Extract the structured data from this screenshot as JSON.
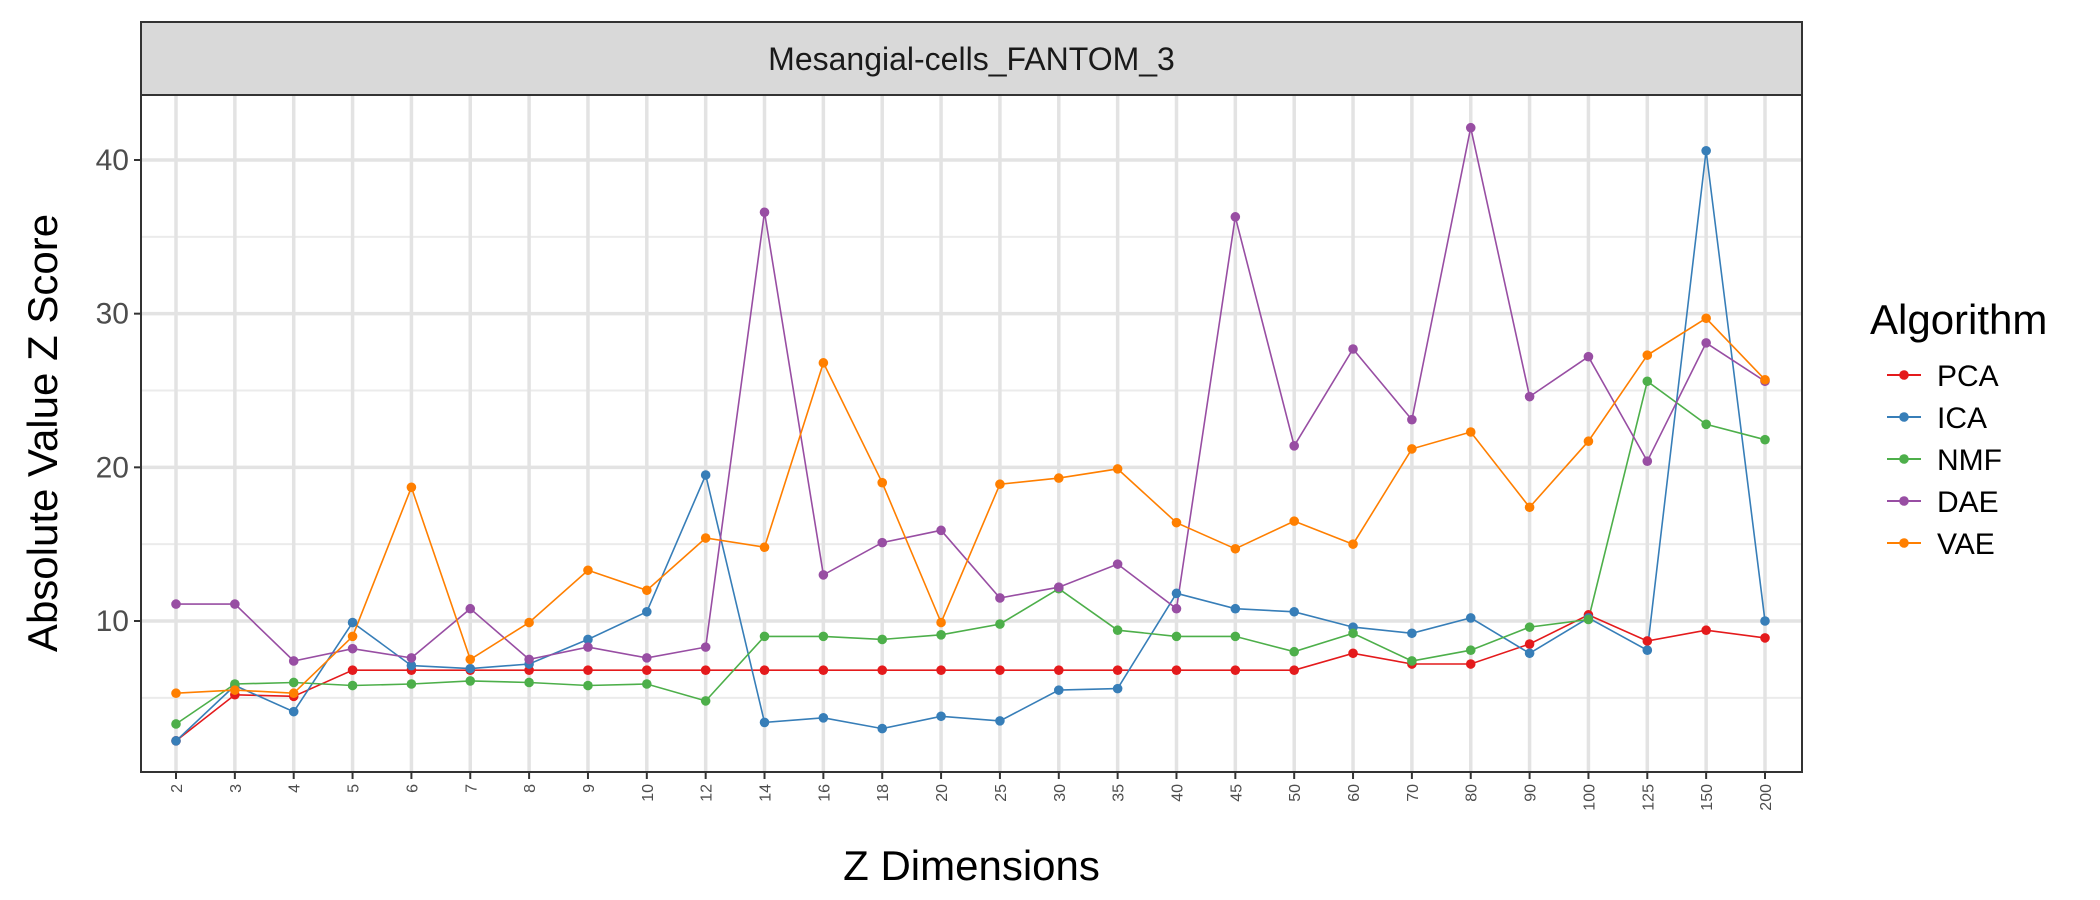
{
  "chart_data": {
    "type": "line",
    "facet_title": "Mesangial-cells_FANTOM_3",
    "xlabel": "Z Dimensions",
    "ylabel": "Absolute Value Z Score",
    "categories": [
      "2",
      "3",
      "4",
      "5",
      "6",
      "7",
      "8",
      "9",
      "10",
      "12",
      "14",
      "16",
      "18",
      "20",
      "25",
      "30",
      "35",
      "40",
      "45",
      "50",
      "60",
      "70",
      "80",
      "90",
      "100",
      "125",
      "150",
      "200"
    ],
    "ylim": [
      0,
      45
    ],
    "yticks": [
      10,
      20,
      30,
      40
    ],
    "grid": true,
    "legend": {
      "title": "Algorithm",
      "position": "right"
    },
    "series": [
      {
        "name": "PCA",
        "color": "#e41a1c",
        "values": [
          2.2,
          5.2,
          5.1,
          6.8,
          6.8,
          6.8,
          6.8,
          6.8,
          6.8,
          6.8,
          6.8,
          6.8,
          6.8,
          6.8,
          6.8,
          6.8,
          6.8,
          6.8,
          6.8,
          6.8,
          7.9,
          7.2,
          7.2,
          8.5,
          10.4,
          8.7,
          9.4,
          8.9
        ]
      },
      {
        "name": "ICA",
        "color": "#377eb8",
        "values": [
          2.2,
          5.8,
          4.1,
          9.9,
          7.1,
          6.9,
          7.2,
          8.8,
          10.6,
          19.5,
          3.4,
          3.7,
          3.0,
          3.8,
          3.5,
          5.5,
          5.6,
          11.8,
          10.8,
          10.6,
          9.6,
          9.2,
          10.2,
          7.9,
          10.2,
          8.1,
          40.6,
          10.0
        ]
      },
      {
        "name": "NMF",
        "color": "#4daf4a",
        "values": [
          3.3,
          5.9,
          6.0,
          5.8,
          5.9,
          6.1,
          6.0,
          5.8,
          5.9,
          4.8,
          9.0,
          9.0,
          8.8,
          9.1,
          9.8,
          12.1,
          9.4,
          9.0,
          9.0,
          8.0,
          9.2,
          7.4,
          8.1,
          9.6,
          10.1,
          25.6,
          22.8,
          21.8
        ]
      },
      {
        "name": "DAE",
        "color": "#984ea3",
        "values": [
          11.1,
          11.1,
          7.4,
          8.2,
          7.6,
          10.8,
          7.5,
          8.3,
          7.6,
          8.3,
          36.6,
          13.0,
          15.1,
          15.9,
          11.5,
          12.2,
          13.7,
          10.8,
          36.3,
          21.4,
          27.7,
          23.1,
          42.1,
          24.6,
          27.2,
          20.4,
          28.1,
          25.6
        ]
      },
      {
        "name": "VAE",
        "color": "#ff7f00",
        "values": [
          5.3,
          5.5,
          5.3,
          9.0,
          18.7,
          7.5,
          9.9,
          13.3,
          12.0,
          15.4,
          14.8,
          26.8,
          19.0,
          9.9,
          18.9,
          19.3,
          19.9,
          16.4,
          14.7,
          16.5,
          15.0,
          21.2,
          22.3,
          17.4,
          21.7,
          27.3,
          29.7,
          25.7
        ]
      }
    ]
  }
}
